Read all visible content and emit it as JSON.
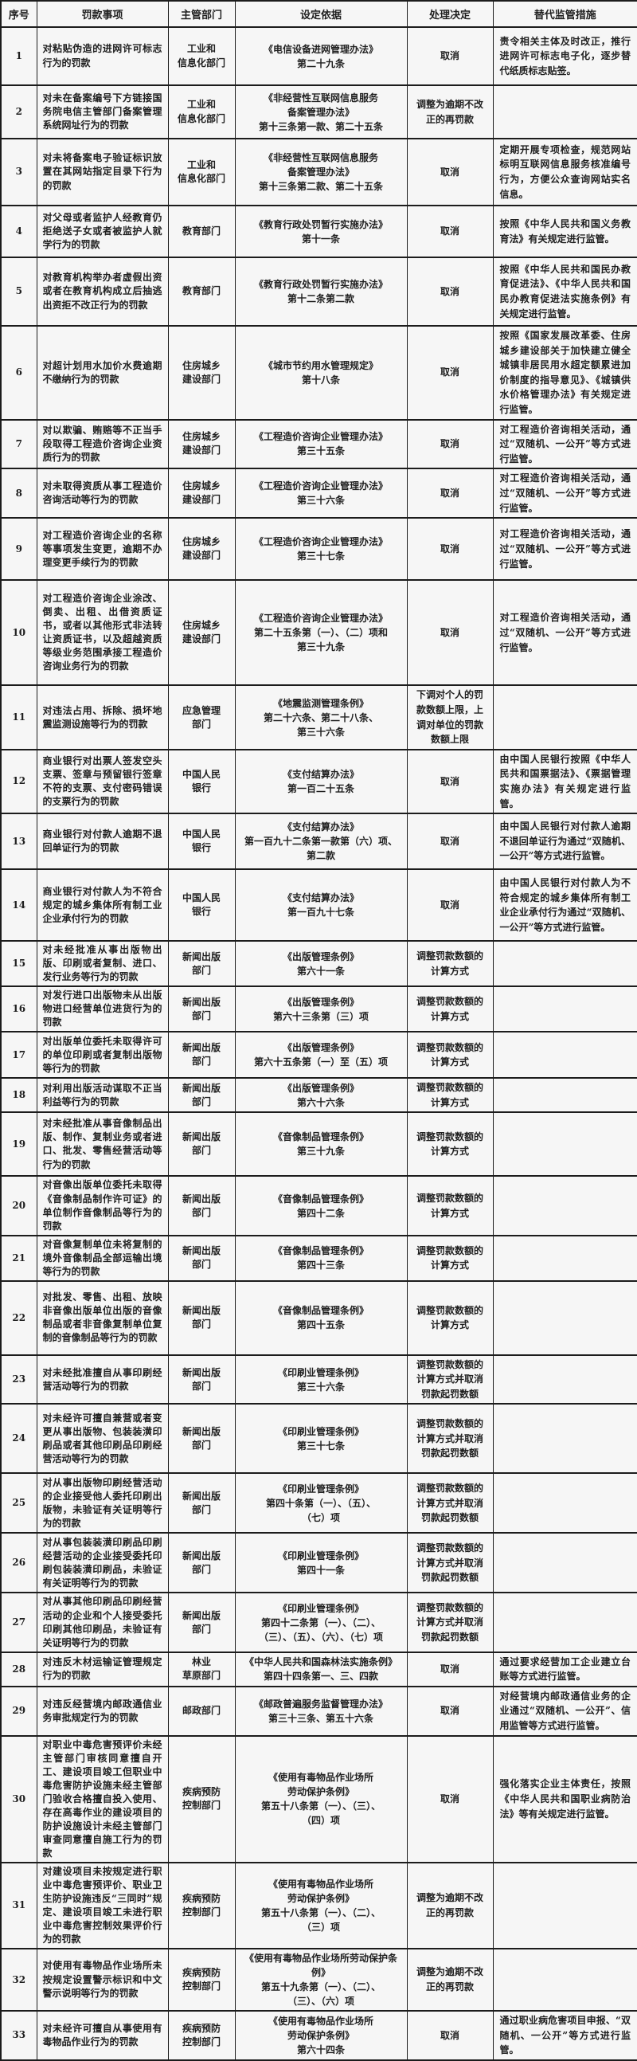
{
  "table": {
    "headers": [
      "序号",
      "罚款事项",
      "主管部门",
      "设定依据",
      "处理决定",
      "替代监管措施"
    ],
    "rows": [
      {
        "no": "1",
        "item": "对粘贴伪造的进网许可标志行为的罚款",
        "dept": "工业和\n信息化部门",
        "basis": "《电信设备进网管理办法》\n第二十九条",
        "decision": "取消",
        "alt": "责令相关主体及时改正，推行进网许可标志电子化，逐步替代纸质标志贴签。"
      },
      {
        "no": "2",
        "item": "对未在备案编号下方链接国务院电信主管部门备案管理系统网址行为的罚款",
        "dept": "工业和\n信息化部门",
        "basis": "《非经营性互联网信息服务\n备案管理办法》\n第十三条第一款、第二十五条",
        "decision": "调整为逾期不改正的再罚款",
        "alt": ""
      },
      {
        "no": "3",
        "item": "对未将备案电子验证标识放置在其网站指定目录下行为的罚款",
        "dept": "工业和\n信息化部门",
        "basis": "《非经营性互联网信息服务\n备案管理办法》\n第十三条第二款、第二十五条",
        "decision": "取消",
        "alt": "定期开展专项检查，规范网站标明互联网信息服务核准编号行为，方便公众查询网站实名信息。"
      },
      {
        "no": "4",
        "item": "对父母或者监护人经教育仍拒绝送子女或者被监护人就学行为的罚款",
        "dept": "教育部门",
        "basis": "《教育行政处罚暂行实施办法》\n第十一条",
        "decision": "取消",
        "alt": "按照《中华人民共和国义务教育法》有关规定进行监管。"
      },
      {
        "no": "5",
        "item": "对教育机构举办者虚假出资或者在教育机构成立后抽逃出资拒不改正行为的罚款",
        "dept": "教育部门",
        "basis": "《教育行政处罚暂行实施办法》\n第十二条第二款",
        "decision": "取消",
        "alt": "按照《中华人民共和国民办教育促进法》、《中华人民共和国民办教育促进法实施条例》有关规定进行监管。"
      },
      {
        "no": "6",
        "item": "对超计划用水加价水费逾期不缴纳行为的罚款",
        "dept": "住房城乡\n建设部门",
        "basis": "《城市节约用水管理规定》\n第十八条",
        "decision": "取消",
        "alt": "按照《国家发展改革委、住房城乡建设部关于加快建立健全城镇非居民用水超定额累进加价制度的指导意见》、《城镇供水价格管理办法》有关规定进行监管。"
      },
      {
        "no": "7",
        "item": "对以欺骗、贿赂等不正当手段取得工程造价咨询企业资质行为的罚款",
        "dept": "住房城乡\n建设部门",
        "basis": "《工程造价咨询企业管理办法》\n第三十五条",
        "decision": "取消",
        "alt": "对工程造价咨询相关活动，通过“双随机、一公开”等方式进行监管。"
      },
      {
        "no": "8",
        "item": "对未取得资质从事工程造价咨询活动等行为的罚款",
        "dept": "住房城乡\n建设部门",
        "basis": "《工程造价咨询企业管理办法》\n第三十六条",
        "decision": "取消",
        "alt": "对工程造价咨询相关活动，通过“双随机、一公开”等方式进行监管。"
      },
      {
        "no": "9",
        "item": "对工程造价咨询企业的名称等事项发生变更，逾期不办理变更手续行为的罚款",
        "dept": "住房城乡\n建设部门",
        "basis": "《工程造价咨询企业管理办法》\n第三十七条",
        "decision": "取消",
        "alt": "对工程造价咨询相关活动，通过“双随机、一公开”等方式进行监管。"
      },
      {
        "no": "10",
        "item": "对工程造价咨询企业涂改、倒卖、出租、出借资质证书，或者以其他形式非法转让资质证书，以及超越资质等级业务范围承接工程造价咨询业务行为的罚款",
        "dept": "住房城乡\n建设部门",
        "basis": "《工程造价咨询企业管理办法》\n第二十五条第（一）、（二）项和\n第三十九条",
        "decision": "取消",
        "alt": "对工程造价咨询相关活动，通过“双随机、一公开”等方式进行监管。"
      },
      {
        "no": "11",
        "item": "对违法占用、拆除、损坏地震监测设施等行为的罚款",
        "dept": "应急管理\n部门",
        "basis": "《地震监测管理条例》\n第二十六条、第二十八条、\n第三十六条",
        "decision": "下调对个人的罚款数额上限，上调对单位的罚款数额上限",
        "alt": ""
      },
      {
        "no": "12",
        "item": "商业银行对出票人签发空头支票、签章与预留银行签章不符的支票、支付密码错误的支票行为的罚款",
        "dept": "中国人民\n银行",
        "basis": "《支付结算办法》\n第一百二十五条",
        "decision": "取消",
        "alt": "由中国人民银行按照《中华人民共和国票据法》、《票据管理实施办法》有关规定进行监管。"
      },
      {
        "no": "13",
        "item": "商业银行对付款人逾期不退回单证行为的罚款",
        "dept": "中国人民\n银行",
        "basis": "《支付结算办法》\n第一百九十二条第一款第（六）项、\n第二款",
        "decision": "取消",
        "alt": "由中国人民银行对付款人逾期不退回单证行为通过“双随机、一公开”等方式进行监管。"
      },
      {
        "no": "14",
        "item": "商业银行对付款人为不符合规定的城乡集体所有制工业企业承付行为的罚款",
        "dept": "中国人民\n银行",
        "basis": "《支付结算办法》\n第一百九十七条",
        "decision": "取消",
        "alt": "由中国人民银行对付款人为不符合规定的城乡集体所有制工业企业承付行为通过“双随机、一公开”等方式进行监管。"
      },
      {
        "no": "15",
        "item": "对未经批准从事出版物出版、印刷或者复制、进口、发行业务等行为的罚款",
        "dept": "新闻出版\n部门",
        "basis": "《出版管理条例》\n第六十一条",
        "decision": "调整罚款数额的计算方式",
        "alt": ""
      },
      {
        "no": "16",
        "item": "对发行进口出版物未从出版物进口经营单位进货行为的罚款",
        "dept": "新闻出版\n部门",
        "basis": "《出版管理条例》\n第六十三条第（三）项",
        "decision": "调整罚款数额的计算方式",
        "alt": ""
      },
      {
        "no": "17",
        "item": "对出版单位委托未取得许可的单位印刷或者复制出版物等行为的罚款",
        "dept": "新闻出版\n部门",
        "basis": "《出版管理条例》\n第六十五条第（一）至（五）项",
        "decision": "调整罚款数额的计算方式",
        "alt": ""
      },
      {
        "no": "18",
        "item": "对利用出版活动谋取不正当利益等行为的罚款",
        "dept": "新闻出版\n部门",
        "basis": "《出版管理条例》\n第六十六条",
        "decision": "调整罚款数额的计算方式",
        "alt": ""
      },
      {
        "no": "19",
        "item": "对未经批准从事音像制品出版、制作、复制业务或者进口、批发、零售经营活动等行为的罚款",
        "dept": "新闻出版\n部门",
        "basis": "《音像制品管理条例》\n第三十九条",
        "decision": "调整罚款数额的计算方式",
        "alt": ""
      },
      {
        "no": "20",
        "item": "对音像出版单位委托未取得《音像制品制作许可证》的单位制作音像制品等行为的罚款",
        "dept": "新闻出版\n部门",
        "basis": "《音像制品管理条例》\n第四十二条",
        "decision": "调整罚款数额的计算方式",
        "alt": ""
      },
      {
        "no": "21",
        "item": "对音像复制单位未将复制的境外音像制品全部运输出境等行为的罚款",
        "dept": "新闻出版\n部门",
        "basis": "《音像制品管理条例》\n第四十三条",
        "decision": "调整罚款数额的计算方式",
        "alt": ""
      },
      {
        "no": "22",
        "item": "对批发、零售、出租、放映非音像出版单位出版的音像制品或者非音像复制单位复制的音像制品等行为的罚款",
        "dept": "新闻出版\n部门",
        "basis": "《音像制品管理条例》\n第四十五条",
        "decision": "调整罚款数额的计算方式",
        "alt": ""
      },
      {
        "no": "23",
        "item": "对未经批准擅自从事印刷经营活动等行为的罚款",
        "dept": "新闻出版\n部门",
        "basis": "《印刷业管理条例》\n第三十六条",
        "decision": "调整罚款数额的计算方式并取消罚款起罚数额",
        "alt": ""
      },
      {
        "no": "24",
        "item": "对未经许可擅自兼营或者变更从事出版物、包装装潢印刷品或者其他印刷品印刷经营活动等行为的罚款",
        "dept": "新闻出版\n部门",
        "basis": "《印刷业管理条例》\n第三十七条",
        "decision": "调整罚款数额的计算方式并取消罚款起罚数额",
        "alt": ""
      },
      {
        "no": "25",
        "item": "对从事出版物印刷经营活动的企业接受他人委托印刷出版物，未验证有关证明等行为的罚款",
        "dept": "新闻出版\n部门",
        "basis": "《印刷业管理条例》\n第四十条第（一）、（五）、\n（七）项",
        "decision": "调整罚款数额的计算方式并取消罚款起罚数额",
        "alt": ""
      },
      {
        "no": "26",
        "item": "对从事包装装潢印刷品印刷经营活动的企业接受委托印刷包装装潢印刷品，未验证有关证明等行为的罚款",
        "dept": "新闻出版\n部门",
        "basis": "《印刷业管理条例》\n第四十一条",
        "decision": "调整罚款数额的计算方式并取消罚款起罚数额",
        "alt": ""
      },
      {
        "no": "27",
        "item": "对从事其他印刷品印刷经营活动的企业和个人接受委托印刷其他印刷品，未验证有关证明等行为的罚款",
        "dept": "新闻出版\n部门",
        "basis": "《印刷业管理条例》\n第四十二条第（一）、（二）、\n（三）、（五）、（六）、（七）项",
        "decision": "调整罚款数额的计算方式并取消罚款起罚数额",
        "alt": ""
      },
      {
        "no": "28",
        "item": "对违反木材运输证管理规定行为的罚款",
        "dept": "林业\n草原部门",
        "basis": "《中华人民共和国森林法实施条例》\n第四十四条第一、三、四款",
        "decision": "取消",
        "alt": "通过要求经营加工企业建立台账等方式进行监管。"
      },
      {
        "no": "29",
        "item": "对违反经营境内邮政通信业务审批规定行为的罚款",
        "dept": "邮政部门",
        "basis": "《邮政普遍服务监督管理办法》\n第三十三条、第五十六条",
        "decision": "取消",
        "alt": "对经营境内邮政通信业务的企业通过“双随机、一公开”、信用监管等方式进行监管。"
      },
      {
        "no": "30",
        "item": "对职业中毒危害预评价未经主管部门审核同意擅自开工、建设项目竣工但职业中毒危害防护设施未经主管部门验收合格擅自投入使用、存在高毒作业的建设项目的防护设施设计未经主管部门审查同意擅自施工行为的罚款",
        "dept": "疾病预防\n控制部门",
        "basis": "《使用有毒物品作业场所\n劳动保护条例》\n第五十八条第（一）、（三）、\n（四）项",
        "decision": "取消",
        "alt": "强化落实企业主体责任，按照《中华人民共和国职业病防治法》等有关规定进行监管。"
      },
      {
        "no": "31",
        "item": "对建设项目未按规定进行职业中毒危害预评价、职业卫生防护设施违反“三同时”规定、建设项目竣工未进行职业中毒危害控制效果评价行为的罚款",
        "dept": "疾病预防\n控制部门",
        "basis": "《使用有毒物品作业场所\n劳动保护条例》\n第五十八条第（一）、（二）、\n（三）项",
        "decision": "调整为逾期不改正的再罚款",
        "alt": ""
      },
      {
        "no": "32",
        "item": "对使用有毒物品作业场所未按规定设置警示标识和中文警示说明等行为的罚款",
        "dept": "疾病预防\n控制部门",
        "basis": "《使用有毒物品作业场所劳动保护条例》\n第五十九条第（一）、（二）、\n（三）、（六）项",
        "decision": "调整为逾期不改正的再罚款",
        "alt": ""
      },
      {
        "no": "33",
        "item": "对未经许可擅自从事使用有毒物品作业行为的罚款",
        "dept": "疾病预防\n控制部门",
        "basis": "《使用有毒物品作业场所\n劳动保护条例》\n第六十四条",
        "decision": "取消",
        "alt": "通过职业病危害项目申报、“双随机、一公开”等方式进行监管。"
      }
    ]
  }
}
